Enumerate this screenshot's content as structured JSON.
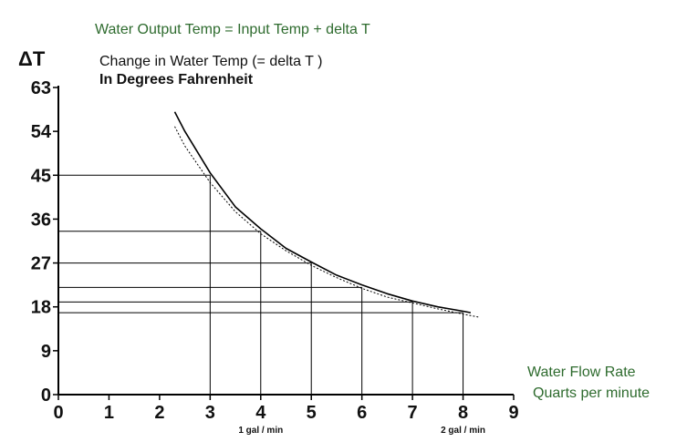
{
  "chart_data": {
    "type": "line",
    "title": "Water Output Temp = Input Temp + delta T",
    "subtitle": "Change in Water Temp (= delta T )",
    "subtitle2": "In Degrees  Fahrenheit",
    "ylabel": "ΔT",
    "xlabel_line1": "Water Flow Rate",
    "xlabel_line2": "Quarts per minute",
    "xlim": [
      0,
      9
    ],
    "ylim": [
      0,
      63
    ],
    "x_ticks": [
      0,
      1,
      2,
      3,
      4,
      5,
      6,
      7,
      8,
      9
    ],
    "y_ticks": [
      0,
      9,
      18,
      27,
      36,
      45,
      54,
      63
    ],
    "x_annotations": [
      {
        "x": 4,
        "text": "1 gal / min"
      },
      {
        "x": 8,
        "text": "2 gal / min"
      }
    ],
    "reference_points": [
      {
        "x": 3,
        "y": 45
      },
      {
        "x": 4,
        "y": 33.5
      },
      {
        "x": 5,
        "y": 27
      },
      {
        "x": 6,
        "y": 22
      },
      {
        "x": 7,
        "y": 19
      },
      {
        "x": 8,
        "y": 16.8
      }
    ],
    "series": [
      {
        "style": "solid",
        "x": [
          2.3,
          2.5,
          3.0,
          3.5,
          4.0,
          4.5,
          5.0,
          5.5,
          6.0,
          6.5,
          7.0,
          7.5,
          8.0,
          8.15
        ],
        "y": [
          58,
          54,
          45.5,
          38.5,
          34,
          30,
          27.2,
          24.5,
          22.5,
          20.7,
          19.2,
          18,
          17.1,
          16.8
        ]
      },
      {
        "style": "dotted",
        "x": [
          2.3,
          2.5,
          3.0,
          3.5,
          4.0,
          4.5,
          5.0,
          5.5,
          6.0,
          6.5,
          7.0,
          7.5,
          8.0,
          8.3
        ],
        "y": [
          55,
          51,
          43.5,
          37.5,
          33,
          29.5,
          26.5,
          24,
          21.8,
          20,
          18.8,
          17.6,
          16.5,
          15.9
        ]
      }
    ],
    "colors": {
      "axis": "#000000",
      "curve": "#000000",
      "title_green": "#2e6b2e",
      "xlabel_green": "#2e6b2e"
    },
    "grid": false
  }
}
